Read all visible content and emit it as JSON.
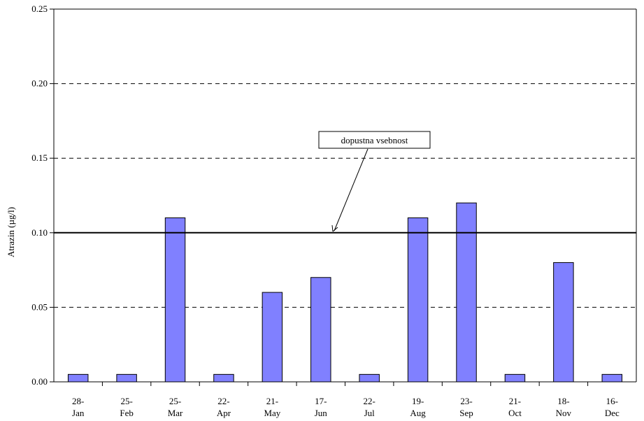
{
  "chart_data": {
    "type": "bar",
    "title": "",
    "xlabel": "",
    "ylabel": "Atrazin (µg/l)",
    "ylim": [
      0,
      0.25
    ],
    "yticks": [
      "0.00",
      "0.05",
      "0.10",
      "0.15",
      "0.20",
      "0.25"
    ],
    "grid": "horizontal dashed",
    "categories": [
      [
        "28-",
        "Jan"
      ],
      [
        "25-",
        "Feb"
      ],
      [
        "25-",
        "Mar"
      ],
      [
        "22-",
        "Apr"
      ],
      [
        "21-",
        "May"
      ],
      [
        "17-",
        "Jun"
      ],
      [
        "22-",
        "Jul"
      ],
      [
        "19-",
        "Aug"
      ],
      [
        "23-",
        "Sep"
      ],
      [
        "21-",
        "Oct"
      ],
      [
        "18-",
        "Nov"
      ],
      [
        "16-",
        "Dec"
      ]
    ],
    "values": [
      0.005,
      0.005,
      0.11,
      0.005,
      0.06,
      0.07,
      0.005,
      0.11,
      0.12,
      0.005,
      0.08,
      0.005
    ],
    "reference_line": {
      "value": 0.1,
      "label": "dopustna vsebnost"
    },
    "colors": {
      "bar": "#8080ff",
      "bar_border": "#000000",
      "grid": "#000000",
      "reference": "#000000"
    }
  }
}
